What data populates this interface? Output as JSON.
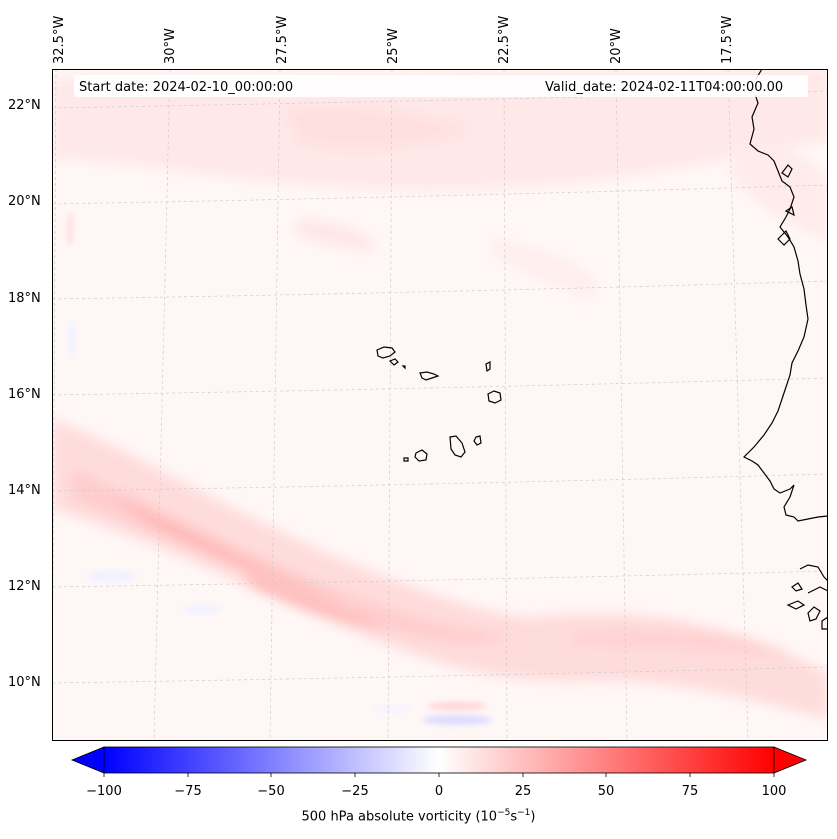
{
  "map": {
    "start_date_label": "Start date: 2024-02-10_00:00:00",
    "valid_date_label": "Valid_date: 2024-02-11T04:00:00.00",
    "lon_labels": [
      "32.5°W",
      "30°W",
      "27.5°W",
      "25°W",
      "22.5°W",
      "20°W",
      "17.5°W"
    ],
    "lat_labels": [
      "22°N",
      "20°N",
      "18°N",
      "16°N",
      "14°N",
      "12°N",
      "10°N"
    ],
    "field": "500 hPa absolute vorticity",
    "region": "Cabo Verde / West African coast"
  },
  "colorbar": {
    "ticks": [
      "−100",
      "−75",
      "−50",
      "−25",
      "0",
      "25",
      "50",
      "75",
      "100"
    ],
    "label_prefix": "500 hPa absolute vorticity (10",
    "label_exp1": "−5",
    "label_mid": "s",
    "label_exp2": "−1",
    "label_suffix": ")",
    "colors": {
      "negative": "#0000ff",
      "zero": "#ffffff",
      "positive": "#ff0000"
    }
  }
}
